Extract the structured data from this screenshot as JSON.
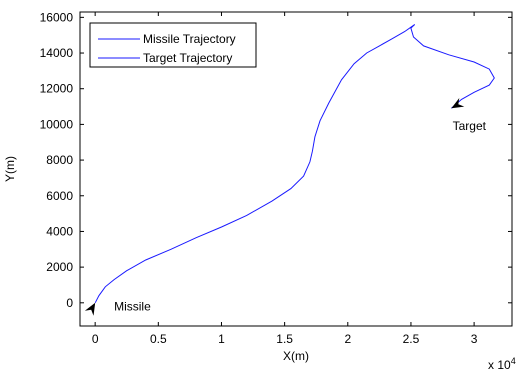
{
  "chart_data": {
    "type": "line",
    "xlabel": "X(m)",
    "ylabel": "Y(m)",
    "x_multiplier": "x 10",
    "x_multiplier_exp": "4",
    "xlim": [
      -0.12,
      3.3
    ],
    "ylim": [
      -1300,
      16300
    ],
    "x_ticks": [
      0,
      0.5,
      1,
      1.5,
      2,
      2.5,
      3
    ],
    "x_tick_labels": [
      "0",
      "0.5",
      "1",
      "1.5",
      "2",
      "2.5",
      "3"
    ],
    "y_ticks": [
      0,
      2000,
      4000,
      6000,
      8000,
      10000,
      12000,
      14000,
      16000
    ],
    "y_tick_labels": [
      "0",
      "2000",
      "4000",
      "6000",
      "8000",
      "10000",
      "12000",
      "14000",
      "16000"
    ],
    "grid": false,
    "legend_position": "top-left",
    "series": [
      {
        "name": "Missile Trajectory",
        "color": "#1a1aff",
        "x": [
          0,
          0.03,
          0.08,
          0.15,
          0.25,
          0.4,
          0.6,
          0.8,
          1.0,
          1.2,
          1.4,
          1.55,
          1.65,
          1.7,
          1.72,
          1.74,
          1.78,
          1.85,
          1.95,
          2.05,
          2.15,
          2.25,
          2.35,
          2.45,
          2.5,
          2.53
        ],
        "y": [
          0,
          400,
          900,
          1300,
          1800,
          2400,
          3000,
          3650,
          4250,
          4900,
          5700,
          6400,
          7100,
          7900,
          8500,
          9300,
          10200,
          11200,
          12500,
          13400,
          14000,
          14400,
          14800,
          15200,
          15450,
          15600
        ]
      },
      {
        "name": "Target Trajectory",
        "color": "#1a1aff",
        "x": [
          2.53,
          2.5,
          2.52,
          2.6,
          2.8,
          3.0,
          3.12,
          3.16,
          3.12,
          3.0,
          2.9,
          2.82
        ],
        "y": [
          15600,
          15400,
          14900,
          14400,
          13900,
          13500,
          13100,
          12600,
          12200,
          11800,
          11400,
          10900
        ]
      }
    ],
    "annotations": [
      {
        "text": "Missile",
        "x": 0.15,
        "y": -200
      },
      {
        "text": "Target",
        "x": 2.83,
        "y": 9900
      }
    ],
    "markers": [
      {
        "name": "missile-marker",
        "x": 0,
        "y": 0,
        "direction_deg": 60
      },
      {
        "name": "target-marker",
        "x": 2.82,
        "y": 10900,
        "direction_deg": 210
      }
    ]
  }
}
